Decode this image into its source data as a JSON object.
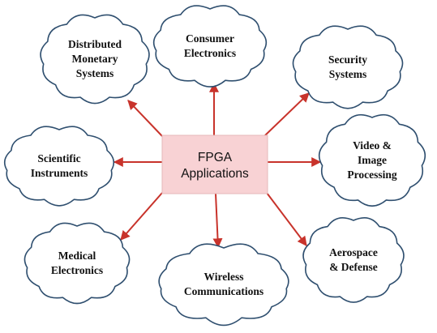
{
  "center": {
    "lines": [
      "FPGA",
      "Applications"
    ]
  },
  "nodes": [
    {
      "id": "distributed-monetary-systems",
      "lines": [
        "Distributed",
        "Monetary",
        "Systems"
      ]
    },
    {
      "id": "consumer-electronics",
      "lines": [
        "Consumer",
        "Electronics"
      ]
    },
    {
      "id": "security-systems",
      "lines": [
        "Security",
        "Systems"
      ]
    },
    {
      "id": "scientific-instruments",
      "lines": [
        "Scientific",
        "Instruments"
      ]
    },
    {
      "id": "video-image-processing",
      "lines": [
        "Video &",
        "Image",
        "Processing"
      ]
    },
    {
      "id": "medical-electronics",
      "lines": [
        "Medical",
        "Electronics"
      ]
    },
    {
      "id": "wireless-communications",
      "lines": [
        "Wireless",
        "Communications"
      ]
    },
    {
      "id": "aerospace-defense",
      "lines": [
        "Aerospace",
        "& Defense"
      ]
    }
  ],
  "colors": {
    "arrow": "#c8332b",
    "center_fill": "#f8d2d4",
    "center_stroke": "#e6b8ba",
    "cloud_stroke": "#2f4f6f"
  }
}
